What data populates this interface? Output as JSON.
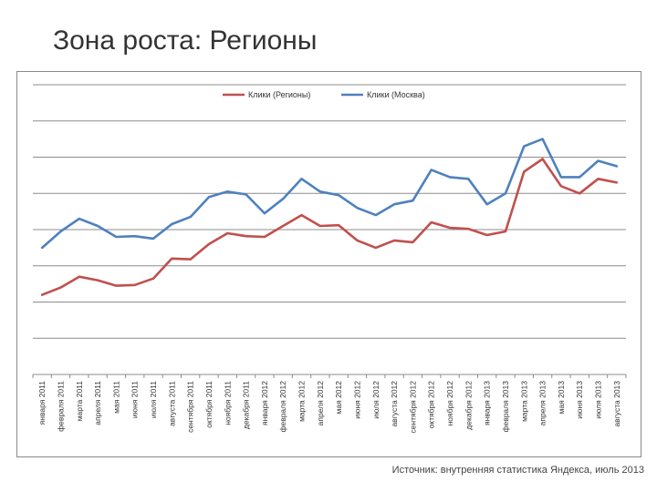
{
  "slide": {
    "title": "Зона роста: Регионы",
    "source": "Источник: внутренняя статистика Яндекса, июль 2013"
  },
  "chart_data": {
    "type": "line",
    "title": "",
    "xlabel": "",
    "ylabel": "",
    "grid": true,
    "legend_position": "top",
    "ylim": [
      0,
      8
    ],
    "categories": [
      "января 2011",
      "февраля 2011",
      "марта 2011",
      "апреля 2011",
      "мая 2011",
      "июня 2011",
      "июля 2011",
      "августа 2011",
      "сентября 2011",
      "октября 2011",
      "ноября 2011",
      "декабря 2011",
      "января 2012",
      "февраля 2012",
      "марта 2012",
      "апреля 2012",
      "мая 2012",
      "июня 2012",
      "июля 2012",
      "августа 2012",
      "сентября 2012",
      "октября 2012",
      "ноября 2012",
      "декабря 2012",
      "января 2013",
      "февраля 2013",
      "марта 2013",
      "апреля 2013",
      "мая 2013",
      "июня 2013",
      "июля 2013",
      "августа 2013"
    ],
    "series": [
      {
        "name": "Клики (Регионы)",
        "color": "#c0504d",
        "values": [
          2.2,
          2.4,
          2.7,
          2.6,
          2.45,
          2.47,
          2.65,
          3.2,
          3.18,
          3.6,
          3.9,
          3.82,
          3.8,
          4.1,
          4.4,
          4.1,
          4.12,
          3.7,
          3.5,
          3.7,
          3.65,
          4.2,
          4.05,
          4.02,
          3.85,
          3.95,
          5.6,
          5.95,
          5.2,
          5.0,
          5.4,
          5.3
        ]
      },
      {
        "name": "Клики (Москва)",
        "color": "#4f81bd",
        "values": [
          3.5,
          3.95,
          4.3,
          4.1,
          3.8,
          3.82,
          3.75,
          4.15,
          4.35,
          4.9,
          5.05,
          4.97,
          4.45,
          4.85,
          5.4,
          5.05,
          4.95,
          4.6,
          4.4,
          4.7,
          4.8,
          5.65,
          5.45,
          5.4,
          4.7,
          5.0,
          6.3,
          6.5,
          5.45,
          5.45,
          5.9,
          5.75
        ]
      }
    ]
  }
}
